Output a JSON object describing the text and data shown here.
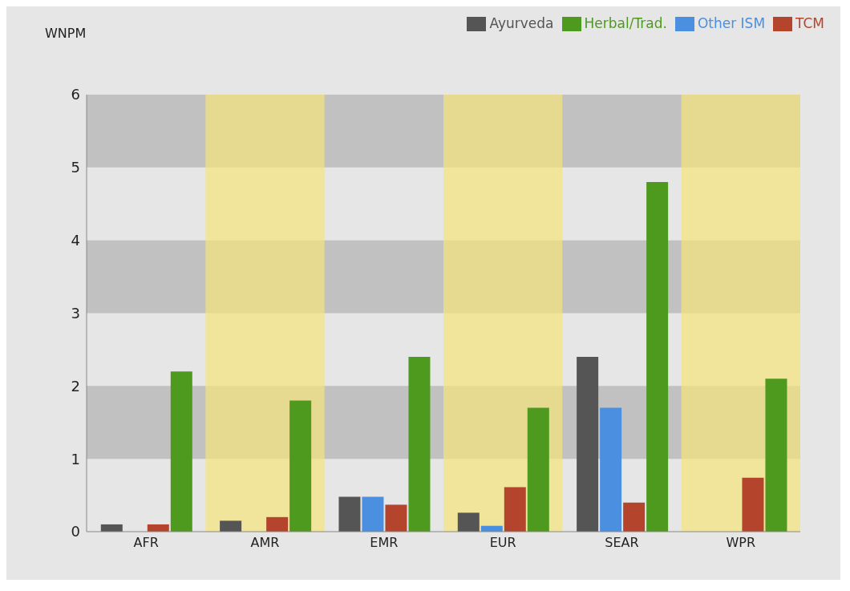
{
  "chart_data": {
    "type": "bar",
    "ylabel": "WNPM",
    "categories": [
      "AFR",
      "AMR",
      "EMR",
      "EUR",
      "SEAR",
      "WPR"
    ],
    "series": [
      {
        "name": "Ayurveda",
        "color": "#555555",
        "values": [
          0.1,
          0.15,
          0.48,
          0.26,
          2.4,
          0
        ]
      },
      {
        "name": "Other ISM",
        "color": "#4a8fe0",
        "values": [
          0,
          0,
          0.48,
          0.08,
          1.7,
          0
        ]
      },
      {
        "name": "TCM",
        "color": "#b5442c",
        "values": [
          0.1,
          0.2,
          0.37,
          0.61,
          0.4,
          0.74
        ]
      },
      {
        "name": "Herbal/Trad.",
        "color": "#4e9a1e",
        "values": [
          2.2,
          1.8,
          2.4,
          1.7,
          4.8,
          2.1
        ]
      }
    ],
    "ylim": [
      0,
      6
    ],
    "yticks": [
      0,
      1,
      2,
      3,
      4,
      5,
      6
    ],
    "grid": false,
    "legend": "top right",
    "bands": [
      {
        "axis": "y",
        "from": 1,
        "to": 2,
        "color": "#a8a8a8"
      },
      {
        "axis": "y",
        "from": 3,
        "to": 4,
        "color": "#a8a8a8"
      },
      {
        "axis": "y",
        "from": 5,
        "to": 6,
        "color": "#a8a8a8"
      },
      {
        "axis": "x",
        "from": "AMR",
        "to": "AMR",
        "color": "#f5e27a"
      },
      {
        "axis": "x",
        "from": "EUR",
        "to": "EUR",
        "color": "#f5e27a"
      },
      {
        "axis": "x",
        "from": "WPR",
        "to": "WPR",
        "color": "#f5e27a"
      }
    ]
  }
}
